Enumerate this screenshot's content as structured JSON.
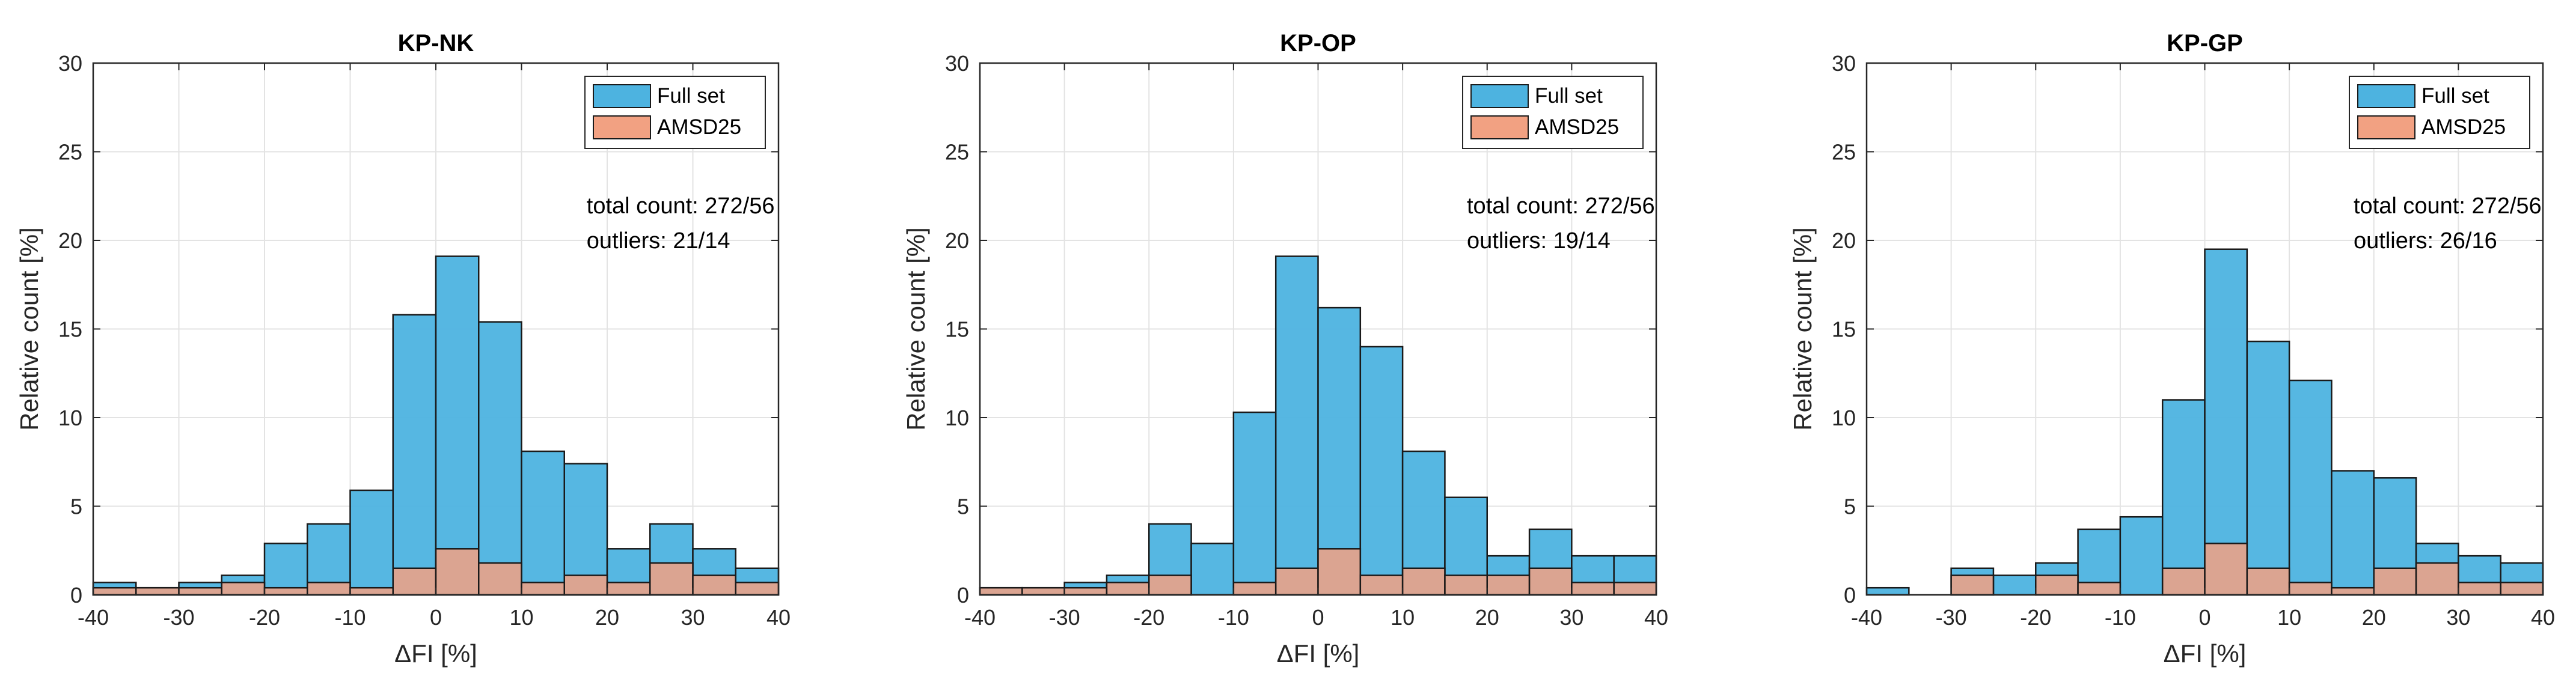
{
  "chart_data": [
    {
      "type": "bar",
      "title": "KP-NK",
      "xlabel": "ΔFI [%]",
      "ylabel": "Relative count [%]",
      "xlim": [
        -40,
        40
      ],
      "ylim": [
        0,
        30
      ],
      "xticks": [
        -40,
        -30,
        -20,
        -10,
        0,
        10,
        20,
        30,
        40
      ],
      "yticks": [
        0,
        5,
        10,
        15,
        20,
        25,
        30
      ],
      "grid": true,
      "legend_position": "top-right",
      "bin_edges": [
        -40,
        -35,
        -30,
        -25,
        -20,
        -15,
        -10,
        -5,
        0,
        5,
        10,
        15,
        20,
        25,
        30,
        35,
        40
      ],
      "series": [
        {
          "name": "Full set",
          "color": "#4DB3E0",
          "values": [
            0.7,
            0.4,
            0.7,
            1.1,
            2.9,
            4.0,
            5.9,
            15.8,
            19.1,
            15.4,
            8.1,
            7.4,
            2.6,
            4.0,
            2.6,
            1.5
          ]
        },
        {
          "name": "AMSD25",
          "color": "#F2A182",
          "values": [
            0.4,
            0.4,
            0.4,
            0.7,
            0.4,
            0.7,
            0.4,
            1.5,
            2.6,
            1.8,
            0.7,
            1.1,
            0.7,
            1.8,
            1.1,
            0.7
          ]
        }
      ],
      "annotations": [
        "total count: 272/56",
        "outliers: 21/14"
      ]
    },
    {
      "type": "bar",
      "title": "KP-OP",
      "xlabel": "ΔFI [%]",
      "ylabel": "Relative count [%]",
      "xlim": [
        -40,
        40
      ],
      "ylim": [
        0,
        30
      ],
      "xticks": [
        -40,
        -30,
        -20,
        -10,
        0,
        10,
        20,
        30,
        40
      ],
      "yticks": [
        0,
        5,
        10,
        15,
        20,
        25,
        30
      ],
      "grid": true,
      "legend_position": "top-right",
      "bin_edges": [
        -40,
        -35,
        -30,
        -25,
        -20,
        -15,
        -10,
        -5,
        0,
        5,
        10,
        15,
        20,
        25,
        30,
        35,
        40
      ],
      "series": [
        {
          "name": "Full set",
          "color": "#4DB3E0",
          "values": [
            0.4,
            0.4,
            0.7,
            1.1,
            4.0,
            2.9,
            10.3,
            19.1,
            16.2,
            14.0,
            8.1,
            5.5,
            2.2,
            3.7,
            2.2,
            2.2
          ]
        },
        {
          "name": "AMSD25",
          "color": "#F2A182",
          "values": [
            0.4,
            0.4,
            0.4,
            0.7,
            1.1,
            0.0,
            0.7,
            1.5,
            2.6,
            1.1,
            1.5,
            1.1,
            1.1,
            1.5,
            0.7,
            0.7
          ]
        }
      ],
      "annotations": [
        "total count: 272/56",
        "outliers: 19/14"
      ]
    },
    {
      "type": "bar",
      "title": "KP-GP",
      "xlabel": "ΔFI [%]",
      "ylabel": "Relative count [%]",
      "xlim": [
        -40,
        40
      ],
      "ylim": [
        0,
        30
      ],
      "xticks": [
        -40,
        -30,
        -20,
        -10,
        0,
        10,
        20,
        30,
        40
      ],
      "yticks": [
        0,
        5,
        10,
        15,
        20,
        25,
        30
      ],
      "grid": true,
      "legend_position": "top-right",
      "bin_edges": [
        -40,
        -35,
        -30,
        -25,
        -20,
        -15,
        -10,
        -5,
        0,
        5,
        10,
        15,
        20,
        25,
        30,
        35,
        40
      ],
      "series": [
        {
          "name": "Full set",
          "color": "#4DB3E0",
          "values": [
            0.4,
            0.0,
            1.5,
            1.1,
            1.8,
            3.7,
            4.4,
            11.0,
            19.5,
            14.3,
            12.1,
            7.0,
            6.6,
            2.9,
            2.2,
            1.8
          ]
        },
        {
          "name": "AMSD25",
          "color": "#F2A182",
          "values": [
            0.0,
            0.0,
            1.1,
            0.0,
            1.1,
            0.7,
            0.0,
            1.5,
            2.9,
            1.5,
            0.7,
            0.4,
            1.5,
            1.8,
            0.7,
            0.7
          ]
        }
      ],
      "annotations": [
        "total count: 272/56",
        "outliers: 26/16"
      ]
    }
  ]
}
